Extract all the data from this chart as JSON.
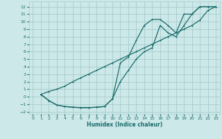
{
  "xlabel": "Humidex (Indice chaleur)",
  "xlim": [
    -0.5,
    23.5
  ],
  "ylim": [
    -2.3,
    12.7
  ],
  "xticks": [
    0,
    1,
    2,
    3,
    4,
    5,
    6,
    7,
    8,
    9,
    10,
    11,
    12,
    13,
    14,
    15,
    16,
    17,
    18,
    19,
    20,
    21,
    22,
    23
  ],
  "yticks": [
    -2,
    -1,
    0,
    1,
    2,
    3,
    4,
    5,
    6,
    7,
    8,
    9,
    10,
    11,
    12
  ],
  "bg_color": "#cce8e8",
  "grid_color": "#a8cccc",
  "line_color": "#1a6b6b",
  "line1_x": [
    1,
    2,
    3,
    4,
    5,
    6,
    7,
    8,
    9,
    10,
    11,
    12,
    13,
    14,
    15,
    16,
    17,
    18,
    19,
    20,
    21,
    22,
    23
  ],
  "line1_y": [
    0.3,
    -0.5,
    -1.1,
    -1.3,
    -1.4,
    -1.45,
    -1.45,
    -1.4,
    -1.3,
    -0.3,
    4.5,
    5.3,
    7.5,
    9.5,
    10.3,
    10.3,
    9.5,
    8.5,
    11.0,
    11.0,
    12.0,
    12.0,
    12.0
  ],
  "line2_x": [
    1,
    2,
    3,
    4,
    5,
    6,
    7,
    8,
    9,
    10,
    11,
    12,
    13,
    14,
    15,
    16,
    17,
    18,
    19,
    20,
    21,
    22,
    23
  ],
  "line2_y": [
    0.3,
    0.7,
    1.0,
    1.4,
    2.0,
    2.5,
    3.0,
    3.5,
    4.0,
    4.5,
    5.0,
    5.5,
    6.0,
    6.5,
    7.0,
    7.5,
    8.0,
    8.5,
    9.0,
    9.5,
    10.2,
    11.5,
    12.0
  ],
  "line3_x": [
    1,
    2,
    3,
    4,
    5,
    6,
    7,
    8,
    9,
    10,
    11,
    12,
    13,
    14,
    15,
    16,
    17,
    18,
    19,
    20,
    21,
    22,
    23
  ],
  "line3_y": [
    0.3,
    -0.5,
    -1.1,
    -1.3,
    -1.4,
    -1.45,
    -1.45,
    -1.4,
    -1.3,
    -0.3,
    2.0,
    3.5,
    5.0,
    6.0,
    6.5,
    9.5,
    8.5,
    8.0,
    9.5,
    11.0,
    12.0,
    12.0,
    12.0
  ]
}
